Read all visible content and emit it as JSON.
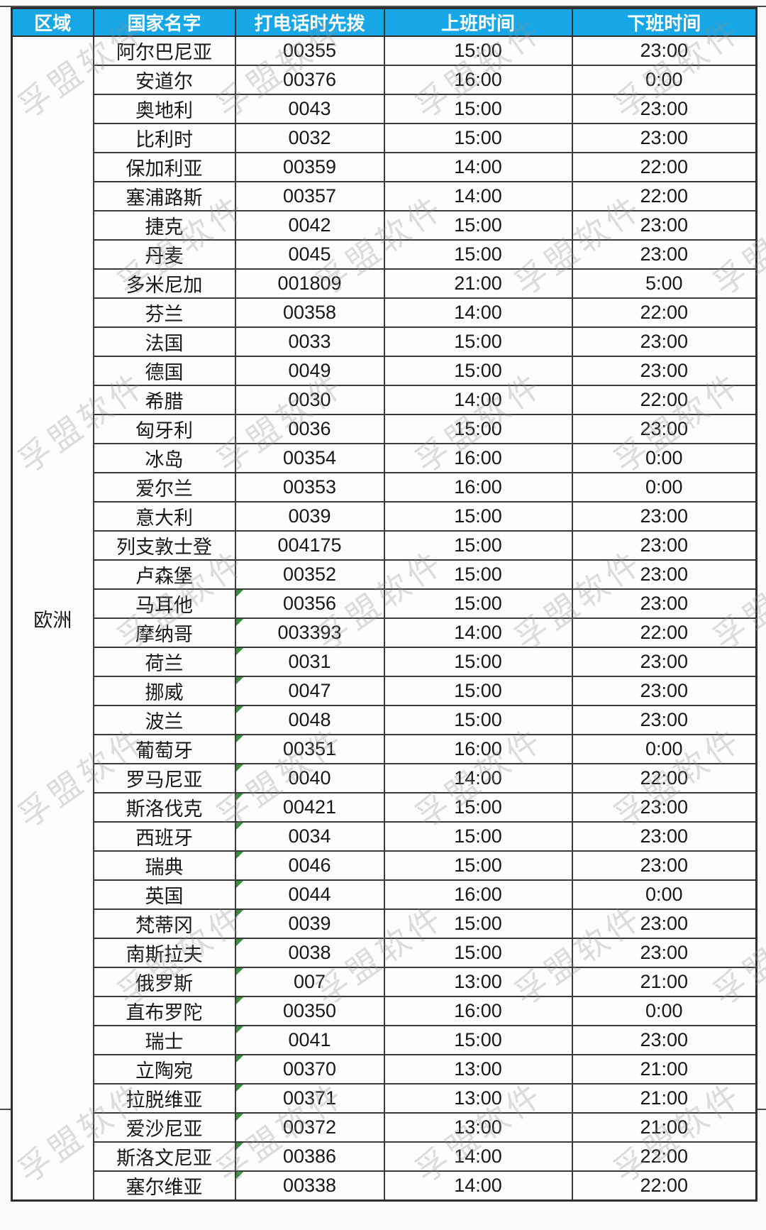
{
  "watermark": {
    "text": "孚盟软件"
  },
  "colors": {
    "header_bg": "#17a7e6",
    "header_text": "#ffffff",
    "border": "#3a3a3a",
    "marker_green": "#35913a"
  },
  "table": {
    "region_label": "欧洲",
    "columns": [
      "区域",
      "国家名字",
      "打电话时先拨",
      "上班时间",
      "下班时间"
    ],
    "rows": [
      {
        "country": "阿尔巴尼亚",
        "code": "00355",
        "start": "15:00",
        "end": "23:00",
        "marker": false
      },
      {
        "country": "安道尔",
        "code": "00376",
        "start": "16:00",
        "end": "0:00",
        "marker": false
      },
      {
        "country": "奥地利",
        "code": "0043",
        "start": "15:00",
        "end": "23:00",
        "marker": false
      },
      {
        "country": "比利时",
        "code": "0032",
        "start": "15:00",
        "end": "23:00",
        "marker": false
      },
      {
        "country": "保加利亚",
        "code": "00359",
        "start": "14:00",
        "end": "22:00",
        "marker": false
      },
      {
        "country": "塞浦路斯",
        "code": "00357",
        "start": "14:00",
        "end": "22:00",
        "marker": false
      },
      {
        "country": "捷克",
        "code": "0042",
        "start": "15:00",
        "end": "23:00",
        "marker": false
      },
      {
        "country": "丹麦",
        "code": "0045",
        "start": "15:00",
        "end": "23:00",
        "marker": false
      },
      {
        "country": "多米尼加",
        "code": "001809",
        "start": "21:00",
        "end": "5:00",
        "marker": false
      },
      {
        "country": "芬兰",
        "code": "00358",
        "start": "14:00",
        "end": "22:00",
        "marker": false
      },
      {
        "country": "法国",
        "code": "0033",
        "start": "15:00",
        "end": "23:00",
        "marker": false
      },
      {
        "country": "德国",
        "code": "0049",
        "start": "15:00",
        "end": "23:00",
        "marker": false
      },
      {
        "country": "希腊",
        "code": "0030",
        "start": "14:00",
        "end": "22:00",
        "marker": false
      },
      {
        "country": "匈牙利",
        "code": "0036",
        "start": "15:00",
        "end": "23:00",
        "marker": false
      },
      {
        "country": "冰岛",
        "code": "00354",
        "start": "16:00",
        "end": "0:00",
        "marker": false
      },
      {
        "country": "爱尔兰",
        "code": "00353",
        "start": "16:00",
        "end": "0:00",
        "marker": false
      },
      {
        "country": "意大利",
        "code": "0039",
        "start": "15:00",
        "end": "23:00",
        "marker": false
      },
      {
        "country": "列支敦士登",
        "code": "004175",
        "start": "15:00",
        "end": "23:00",
        "marker": false
      },
      {
        "country": "卢森堡",
        "code": "00352",
        "start": "15:00",
        "end": "23:00",
        "marker": false
      },
      {
        "country": "马耳他",
        "code": "00356",
        "start": "15:00",
        "end": "23:00",
        "marker": true
      },
      {
        "country": "摩纳哥",
        "code": "003393",
        "start": "14:00",
        "end": "22:00",
        "marker": true
      },
      {
        "country": "荷兰",
        "code": "0031",
        "start": "15:00",
        "end": "23:00",
        "marker": true
      },
      {
        "country": "挪威",
        "code": "0047",
        "start": "15:00",
        "end": "23:00",
        "marker": true
      },
      {
        "country": "波兰",
        "code": "0048",
        "start": "15:00",
        "end": "23:00",
        "marker": true
      },
      {
        "country": "葡萄牙",
        "code": "00351",
        "start": "16:00",
        "end": "0:00",
        "marker": true
      },
      {
        "country": "罗马尼亚",
        "code": "0040",
        "start": "14:00",
        "end": "22:00",
        "marker": true
      },
      {
        "country": "斯洛伐克",
        "code": "00421",
        "start": "15:00",
        "end": "23:00",
        "marker": true
      },
      {
        "country": "西班牙",
        "code": "0034",
        "start": "15:00",
        "end": "23:00",
        "marker": true
      },
      {
        "country": "瑞典",
        "code": "0046",
        "start": "15:00",
        "end": "23:00",
        "marker": true
      },
      {
        "country": "英国",
        "code": "0044",
        "start": "16:00",
        "end": "0:00",
        "marker": true
      },
      {
        "country": "梵蒂冈",
        "code": "0039",
        "start": "15:00",
        "end": "23:00",
        "marker": true
      },
      {
        "country": "南斯拉夫",
        "code": "0038",
        "start": "15:00",
        "end": "23:00",
        "marker": true
      },
      {
        "country": "俄罗斯",
        "code": "007",
        "start": "13:00",
        "end": "21:00",
        "marker": true
      },
      {
        "country": "直布罗陀",
        "code": "00350",
        "start": "16:00",
        "end": "0:00",
        "marker": true
      },
      {
        "country": "瑞士",
        "code": "0041",
        "start": "15:00",
        "end": "23:00",
        "marker": true
      },
      {
        "country": "立陶宛",
        "code": "00370",
        "start": "13:00",
        "end": "21:00",
        "marker": true
      },
      {
        "country": "拉脱维亚",
        "code": "00371",
        "start": "13:00",
        "end": "21:00",
        "marker": true
      },
      {
        "country": "爱沙尼亚",
        "code": "00372",
        "start": "13:00",
        "end": "21:00",
        "marker": true
      },
      {
        "country": "斯洛文尼亚",
        "code": "00386",
        "start": "14:00",
        "end": "22:00",
        "marker": true
      },
      {
        "country": "塞尔维亚",
        "code": "00338",
        "start": "14:00",
        "end": "22:00",
        "marker": true
      }
    ]
  }
}
